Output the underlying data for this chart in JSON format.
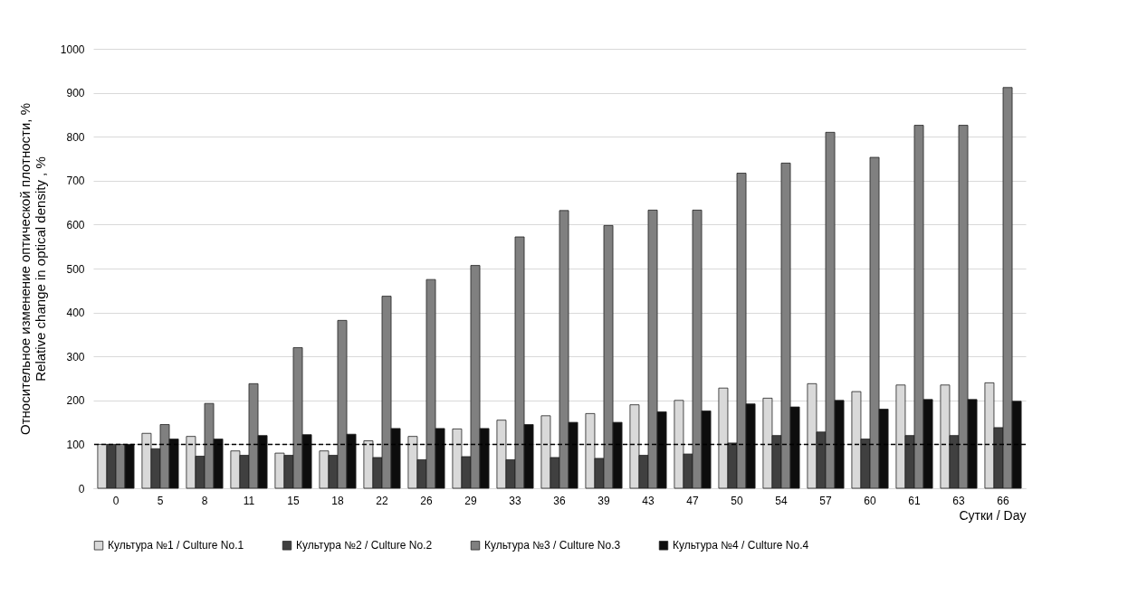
{
  "chart_data": {
    "type": "bar",
    "xlabel": "Сутки / Day",
    "ylabel": "Относительное изменение оптической плотности, %\nRelative change in optical density , %",
    "categories": [
      "0",
      "5",
      "8",
      "11",
      "15",
      "18",
      "22",
      "26",
      "29",
      "33",
      "36",
      "39",
      "43",
      "47",
      "50",
      "54",
      "57",
      "60",
      "61",
      "63",
      "66"
    ],
    "series": [
      {
        "name": "Культура №1 / Culture No.1",
        "color": "#d9d9d9",
        "values": [
          100,
          125,
          118,
          85,
          80,
          85,
          108,
          118,
          135,
          155,
          165,
          170,
          190,
          200,
          228,
          205,
          238,
          220,
          235,
          235,
          240
        ]
      },
      {
        "name": "Культура №2 / Culture No.2",
        "color": "#404040",
        "values": [
          100,
          90,
          73,
          75,
          75,
          75,
          70,
          65,
          72,
          65,
          70,
          68,
          75,
          78,
          103,
          120,
          128,
          112,
          120,
          120,
          138
        ]
      },
      {
        "name": "Культура №3 / Culture No.3",
        "color": "#808080",
        "values": [
          100,
          145,
          193,
          238,
          320,
          382,
          437,
          475,
          507,
          572,
          632,
          598,
          633,
          633,
          717,
          740,
          810,
          753,
          826,
          826,
          912
        ]
      },
      {
        "name": "Культура №4 / Culture No.4",
        "color": "#0d0d0d",
        "values": [
          100,
          112,
          112,
          120,
          122,
          123,
          136,
          136,
          136,
          145,
          150,
          150,
          174,
          176,
          192,
          185,
          200,
          180,
          202,
          202,
          198
        ]
      }
    ],
    "ylim": [
      0,
      1000
    ],
    "yticks": [
      0,
      100,
      200,
      300,
      400,
      500,
      600,
      700,
      800,
      900,
      1000
    ],
    "grid": "y",
    "legend": "bottom",
    "ref_lines": [
      {
        "axis": "y",
        "value": 100,
        "line_style": "dashed",
        "color": "#000000"
      }
    ]
  }
}
